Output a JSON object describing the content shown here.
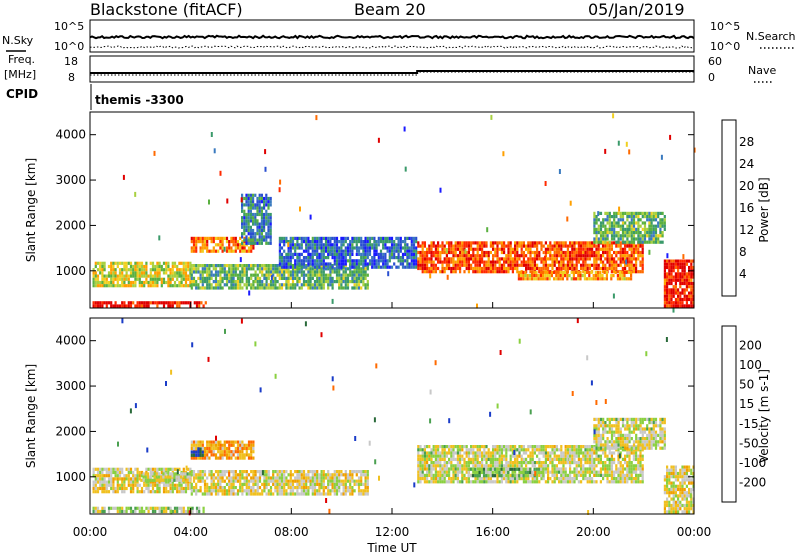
{
  "header": {
    "station": "Blackstone (fitACF)",
    "beam": "Beam 20",
    "date": "05/Jan/2019"
  },
  "top_panels": {
    "nsky_label": "N.Sky",
    "nsearch_label": "N.Search",
    "noise_ticks": [
      "10^5",
      "10^0"
    ],
    "freq_label_1": "Freq.",
    "freq_label_2": "[MHz]",
    "freq_ticks": [
      "18",
      "8"
    ],
    "nave_label": "Nave",
    "nave_ticks": [
      "60",
      "0"
    ],
    "cpid_label": "CPID",
    "cpid_value": "themis -3300"
  },
  "chart_data": [
    {
      "type": "heatmap",
      "title": "",
      "quantity": "Power",
      "xlabel": "Time UT",
      "ylabel": "Slant Range [km]",
      "x_ticks": [
        "00:00",
        "04:00",
        "08:00",
        "12:00",
        "16:00",
        "20:00",
        "00:00"
      ],
      "x_tick_hours": [
        0,
        4,
        8,
        12,
        16,
        20,
        24
      ],
      "xlim_hours": [
        0,
        24
      ],
      "y_ticks": [
        1000,
        2000,
        3000,
        4000
      ],
      "ylim": [
        180,
        4500
      ],
      "colorbar_label": "Power [dB]",
      "colorbar_ticks": [
        "28",
        "24",
        "20",
        "16",
        "12",
        "8",
        "4"
      ],
      "colorbar_colors": [
        "#1a1aff",
        "#2a4fd0",
        "#3a7abf",
        "#3a9a6a",
        "#5ab040",
        "#a8d040",
        "#f0d020",
        "#ffa000",
        "#ff6a00",
        "#ff2a00",
        "#e00000"
      ],
      "regions": [
        {
          "t0": 0.1,
          "t1": 4.6,
          "r0": 250,
          "r1": 330,
          "level": 0.95
        },
        {
          "t0": 0.1,
          "t1": 4.0,
          "r0": 650,
          "r1": 1200,
          "level": 0.55
        },
        {
          "t0": 4.0,
          "t1": 6.5,
          "r0": 1400,
          "r1": 1750,
          "level": 0.75
        },
        {
          "t0": 6.0,
          "t1": 7.2,
          "r0": 1600,
          "r1": 2700,
          "level": 0.25
        },
        {
          "t0": 4.0,
          "t1": 11.0,
          "r0": 650,
          "r1": 1150,
          "level": 0.4
        },
        {
          "t0": 7.5,
          "t1": 13.0,
          "r0": 1050,
          "r1": 1750,
          "level": 0.2
        },
        {
          "t0": 13.0,
          "t1": 22.0,
          "r0": 950,
          "r1": 1650,
          "level": 0.82
        },
        {
          "t0": 17.0,
          "t1": 21.5,
          "r0": 800,
          "r1": 1000,
          "level": 0.7
        },
        {
          "t0": 20.0,
          "t1": 22.8,
          "r0": 1600,
          "r1": 2300,
          "level": 0.4
        },
        {
          "t0": 22.8,
          "t1": 24.0,
          "r0": 250,
          "r1": 1250,
          "level": 0.9
        }
      ]
    },
    {
      "type": "heatmap",
      "title": "",
      "quantity": "Velocity",
      "xlabel": "Time UT",
      "ylabel": "Slant Range [km]",
      "x_ticks": [
        "00:00",
        "04:00",
        "08:00",
        "12:00",
        "16:00",
        "20:00",
        "00:00"
      ],
      "x_tick_hours": [
        0,
        4,
        8,
        12,
        16,
        20,
        24
      ],
      "xlim_hours": [
        0,
        24
      ],
      "y_ticks": [
        1000,
        2000,
        3000,
        4000
      ],
      "ylim": [
        180,
        4500
      ],
      "colorbar_label": "Velocity [m s-1]",
      "colorbar_ticks": [
        "200",
        "100",
        "50",
        "15",
        "-15",
        "-50",
        "-100",
        "-200"
      ],
      "colorbar_colors": [
        "#1a3cc8",
        "#2a6a3a",
        "#4aa050",
        "#8ad040",
        "#c8c8c8",
        "#f0c020",
        "#f0a000",
        "#ff6a00",
        "#e00000"
      ],
      "regions": [
        {
          "t0": 0.1,
          "t1": 4.5,
          "r0": 250,
          "r1": 340,
          "level": 0.45
        },
        {
          "t0": 0.1,
          "t1": 4.0,
          "r0": 650,
          "r1": 1200,
          "level": 0.55
        },
        {
          "t0": 2.0,
          "t1": 4.0,
          "r0": 900,
          "r1": 1100,
          "level": 0.5
        },
        {
          "t0": 4.0,
          "t1": 6.5,
          "r0": 1400,
          "r1": 1800,
          "level": 0.7
        },
        {
          "t0": 4.0,
          "t1": 4.5,
          "r0": 1500,
          "r1": 1650,
          "level": 0.05
        },
        {
          "t0": 4.0,
          "t1": 11.0,
          "r0": 650,
          "r1": 1150,
          "level": 0.55
        },
        {
          "t0": 13.0,
          "t1": 22.0,
          "r0": 900,
          "r1": 1700,
          "level": 0.5
        },
        {
          "t0": 15.0,
          "t1": 18.0,
          "r0": 1000,
          "r1": 1200,
          "level": 0.35
        },
        {
          "t0": 20.0,
          "t1": 22.8,
          "r0": 1600,
          "r1": 2300,
          "level": 0.5
        },
        {
          "t0": 22.8,
          "t1": 24.0,
          "r0": 250,
          "r1": 1250,
          "level": 0.55
        }
      ]
    }
  ]
}
